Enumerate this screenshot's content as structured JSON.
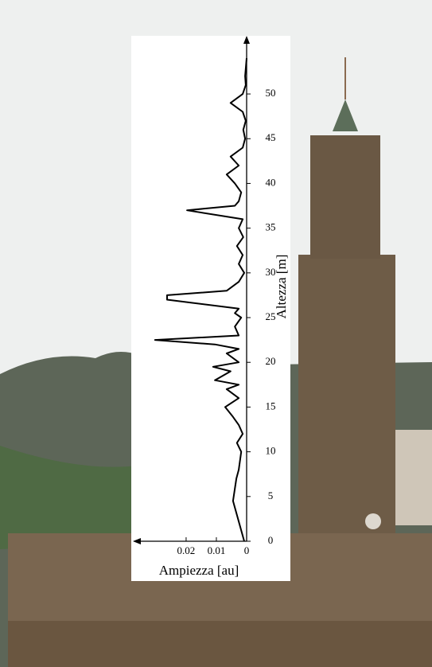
{
  "chart_data": {
    "type": "line",
    "x_label": "Ampiezza [au]",
    "y_label": "Altezza [m]",
    "y": [
      0,
      4.5,
      7,
      8,
      10,
      11,
      12,
      13,
      14,
      15,
      16,
      17,
      17.5,
      18,
      19,
      19.5,
      20,
      21,
      21.5,
      22,
      22.5,
      23,
      24,
      25,
      25.5,
      26,
      27,
      27.5,
      28,
      29,
      30,
      31,
      32,
      33,
      34,
      35,
      36,
      37,
      37.5,
      38,
      39,
      40,
      41,
      42,
      43,
      44,
      45,
      46,
      47,
      48,
      49,
      50,
      51,
      52,
      54
    ],
    "values": [
      0.0008,
      0.0045,
      0.0034,
      0.0026,
      0.0018,
      0.0032,
      0.0013,
      0.0026,
      0.0047,
      0.0071,
      0.0026,
      0.0066,
      0.0026,
      0.0105,
      0.0053,
      0.0111,
      0.0026,
      0.0066,
      0.0026,
      0.0105,
      0.0303,
      0.0026,
      0.0039,
      0.0018,
      0.0039,
      0.0026,
      0.0263,
      0.0263,
      0.0066,
      0.0026,
      0.0008,
      0.0026,
      0.0013,
      0.0032,
      0.0011,
      0.0026,
      0.0013,
      0.0197,
      0.0039,
      0.0026,
      0.0018,
      0.0039,
      0.0066,
      0.0026,
      0.0053,
      0.0013,
      0.0005,
      0.0011,
      0.0003,
      0.0013,
      0.0053,
      0.0013,
      0.0003,
      0.0005,
      0
    ],
    "color": "#000000",
    "xlim": [
      0,
      0.0376
    ],
    "xticks": [
      0,
      0.01,
      0.02
    ],
    "x_reversed": true,
    "ylim": [
      0,
      56.5
    ],
    "yticks": [
      0,
      5,
      10,
      15,
      20,
      25,
      30,
      35,
      40,
      45,
      50
    ]
  }
}
